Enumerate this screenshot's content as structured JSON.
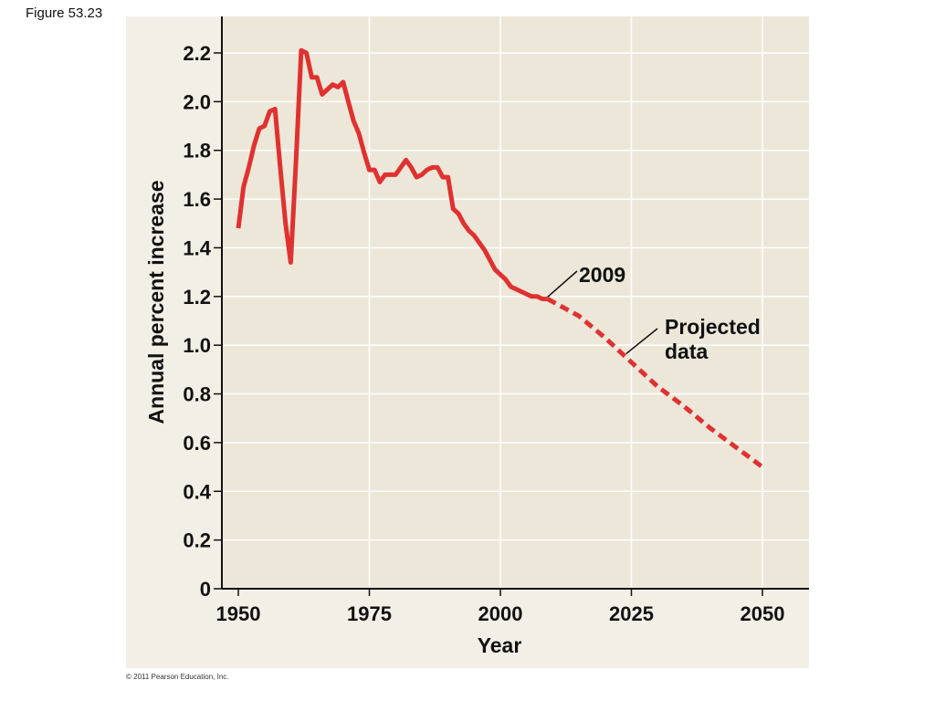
{
  "figure_label": "Figure 53.23",
  "copyright": "© 2011 Pearson Education, Inc.",
  "colors": {
    "panel": "#ece7d9",
    "outer_panel": "#f2efe6",
    "grid": "#ffffff",
    "line": "#e03131",
    "axis": "#111111"
  },
  "chart_data": {
    "type": "line",
    "title": "",
    "xlabel": "Year",
    "ylabel": "Annual percent increase",
    "xlim": [
      1947,
      2058
    ],
    "ylim": [
      0,
      2.25
    ],
    "x_ticks": [
      1950,
      1975,
      2000,
      2025,
      2050
    ],
    "y_ticks": [
      0,
      0.2,
      0.4,
      0.6,
      0.8,
      1.0,
      1.2,
      1.4,
      1.6,
      1.8,
      2.0,
      2.2
    ],
    "y_tick_labels": [
      "0",
      "0.2",
      "0.4",
      "0.6",
      "0.8",
      "1.0",
      "1.2",
      "1.4",
      "1.6",
      "1.8",
      "2.0",
      "2.2"
    ],
    "grid": true,
    "series": [
      {
        "style": "solid",
        "x": [
          1950,
          1951,
          1952,
          1953,
          1954,
          1955,
          1956,
          1957,
          1958,
          1959,
          1960,
          1961,
          1962,
          1963,
          1964,
          1965,
          1966,
          1967,
          1968,
          1969,
          1970,
          1971,
          1972,
          1973,
          1974,
          1975,
          1976,
          1977,
          1978,
          1979,
          1980,
          1981,
          1982,
          1983,
          1984,
          1985,
          1986,
          1987,
          1988,
          1989,
          1990,
          1991,
          1992,
          1993,
          1994,
          1995,
          1996,
          1997,
          1998,
          1999,
          2000,
          2001,
          2002,
          2003,
          2004,
          2005,
          2006,
          2007,
          2008,
          2009
        ],
        "values": [
          1.48,
          1.65,
          1.73,
          1.82,
          1.89,
          1.9,
          1.96,
          1.97,
          1.73,
          1.5,
          1.34,
          1.75,
          2.21,
          2.2,
          2.1,
          2.1,
          2.03,
          2.05,
          2.07,
          2.06,
          2.08,
          2.0,
          1.92,
          1.87,
          1.79,
          1.72,
          1.72,
          1.67,
          1.7,
          1.7,
          1.7,
          1.73,
          1.76,
          1.73,
          1.69,
          1.7,
          1.72,
          1.73,
          1.73,
          1.69,
          1.69,
          1.56,
          1.54,
          1.5,
          1.47,
          1.45,
          1.42,
          1.39,
          1.35,
          1.31,
          1.29,
          1.27,
          1.24,
          1.23,
          1.22,
          1.21,
          1.2,
          1.2,
          1.19,
          1.19
        ]
      },
      {
        "style": "dashed",
        "x": [
          2009,
          2015,
          2020,
          2025,
          2030,
          2035,
          2040,
          2045,
          2050
        ],
        "values": [
          1.19,
          1.12,
          1.03,
          0.93,
          0.83,
          0.75,
          0.66,
          0.58,
          0.5
        ]
      }
    ],
    "annotations": [
      {
        "text_lines": [
          "2009"
        ],
        "x": 2009,
        "y": 1.19
      },
      {
        "text_lines": [
          "Projected",
          "data"
        ],
        "x": 2024,
        "y": 0.95
      }
    ]
  }
}
